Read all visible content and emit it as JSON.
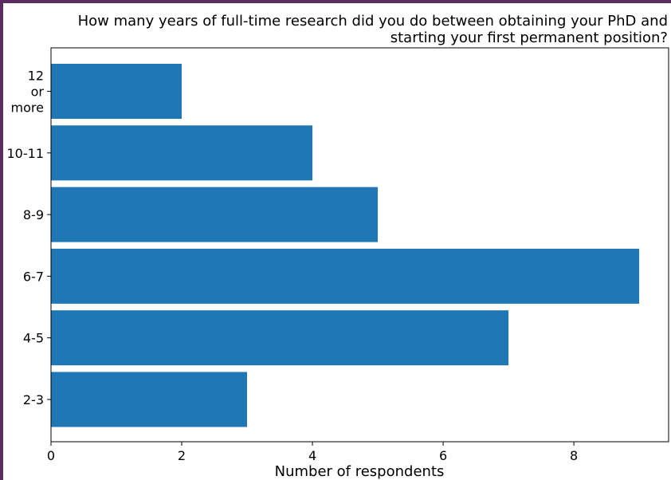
{
  "chart_data": {
    "type": "bar",
    "orientation": "horizontal",
    "title_lines": [
      "How many years of full-time research did you do between obtaining your PhD and",
      "starting your first permanent position?"
    ],
    "categories": [
      "2-3",
      "4-5",
      "6-7",
      "8-9",
      "10-11",
      "12 or more"
    ],
    "values": [
      3,
      7,
      9,
      5,
      4,
      2
    ],
    "xlabel": "Number of respondents",
    "ylabel": "",
    "xlim": [
      0,
      9.45
    ],
    "xticks": [
      0,
      2,
      4,
      6,
      8
    ],
    "grid": false,
    "colors": {
      "bar": "#1f77b4",
      "frame": "#5b2c62"
    }
  }
}
